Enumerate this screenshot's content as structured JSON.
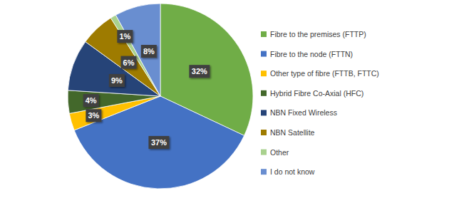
{
  "chart_data": {
    "type": "pie",
    "categories": [
      "Fibre to the premises (FTTP)",
      "Fibre to the node (FTTN)",
      "Other type of fibre (FTTB, FTTC)",
      "Hybrid Fibre Co-Axial (HFC)",
      "NBN Fixed Wireless",
      "NBN Satellite",
      "Other",
      "I do not know"
    ],
    "values": [
      32,
      37,
      3,
      4,
      9,
      6,
      1,
      8
    ],
    "value_labels": [
      "32%",
      "37%",
      "3%",
      "4%",
      "9%",
      "6%",
      "1%",
      "8%"
    ],
    "colors": [
      "#70ad47",
      "#4472c4",
      "#ffc000",
      "#43682b",
      "#264478",
      "#9e7b00",
      "#a9d18e",
      "#698ed0"
    ],
    "data_labels": true,
    "legend": "right"
  }
}
